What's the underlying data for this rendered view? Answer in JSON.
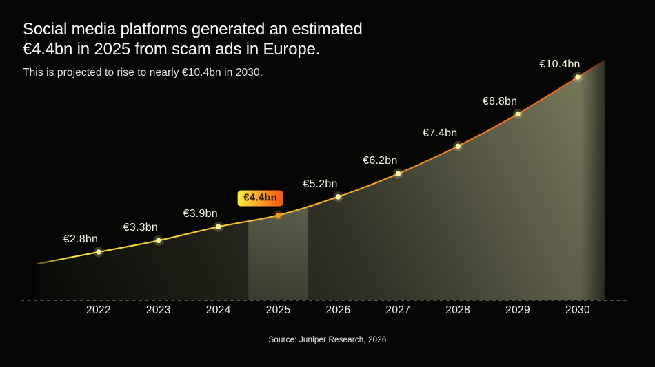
{
  "header": {
    "title_line1": "Social media platforms generated an estimated",
    "title_line2": "€4.4bn in 2025 from scam ads in Europe.",
    "subtitle": "This is projected to rise to nearly €10.4bn in 2030."
  },
  "footer": {
    "source": "Source: Juniper Research, 2026"
  },
  "chart_data": {
    "type": "area",
    "title": "Social media platforms generated an estimated €4.4bn in 2025 from scam ads in Europe.",
    "subtitle": "This is projected to rise to nearly €10.4bn in 2030.",
    "categories": [
      2022,
      2023,
      2024,
      2025,
      2026,
      2027,
      2028,
      2029,
      2030
    ],
    "values": [
      2.8,
      3.3,
      3.9,
      4.4,
      5.2,
      6.2,
      7.4,
      8.8,
      10.4
    ],
    "point_labels": [
      "€2.8bn",
      "€3.3bn",
      "€3.9bn",
      "€4.4bn",
      "€5.2bn",
      "€6.2bn",
      "€7.4bn",
      "€8.8bn",
      "€10.4bn"
    ],
    "unit": "€bn",
    "highlight_index": 3,
    "highlight_label": "€4.4bn",
    "ylim": [
      0,
      11
    ],
    "grid": false,
    "legend": false,
    "xaxis_style": "dashed-baseline"
  },
  "colors": {
    "background": "#050504",
    "line_gradient": [
      "#F0E23E",
      "#F4C631",
      "#F5AC2B",
      "#EF7D26",
      "#E65A1D"
    ],
    "area_dark": "#0D0D09",
    "area_mid": "#323227",
    "area_light": "#79795D",
    "band_overlay": "#E2E2BC",
    "dot": "#F8F1A0",
    "dot_highlight": "#F69A1D",
    "badge_gradient": [
      "#F8EE3F",
      "#FB5310"
    ],
    "badge_text": "#241B03",
    "value_label": "#F7F4E3",
    "axis_label": "#F2F2EC",
    "baseline": "#53524B",
    "title": "#FBFBF9",
    "subtitle": "#E2E2DE",
    "source": "#EAEAE5"
  }
}
